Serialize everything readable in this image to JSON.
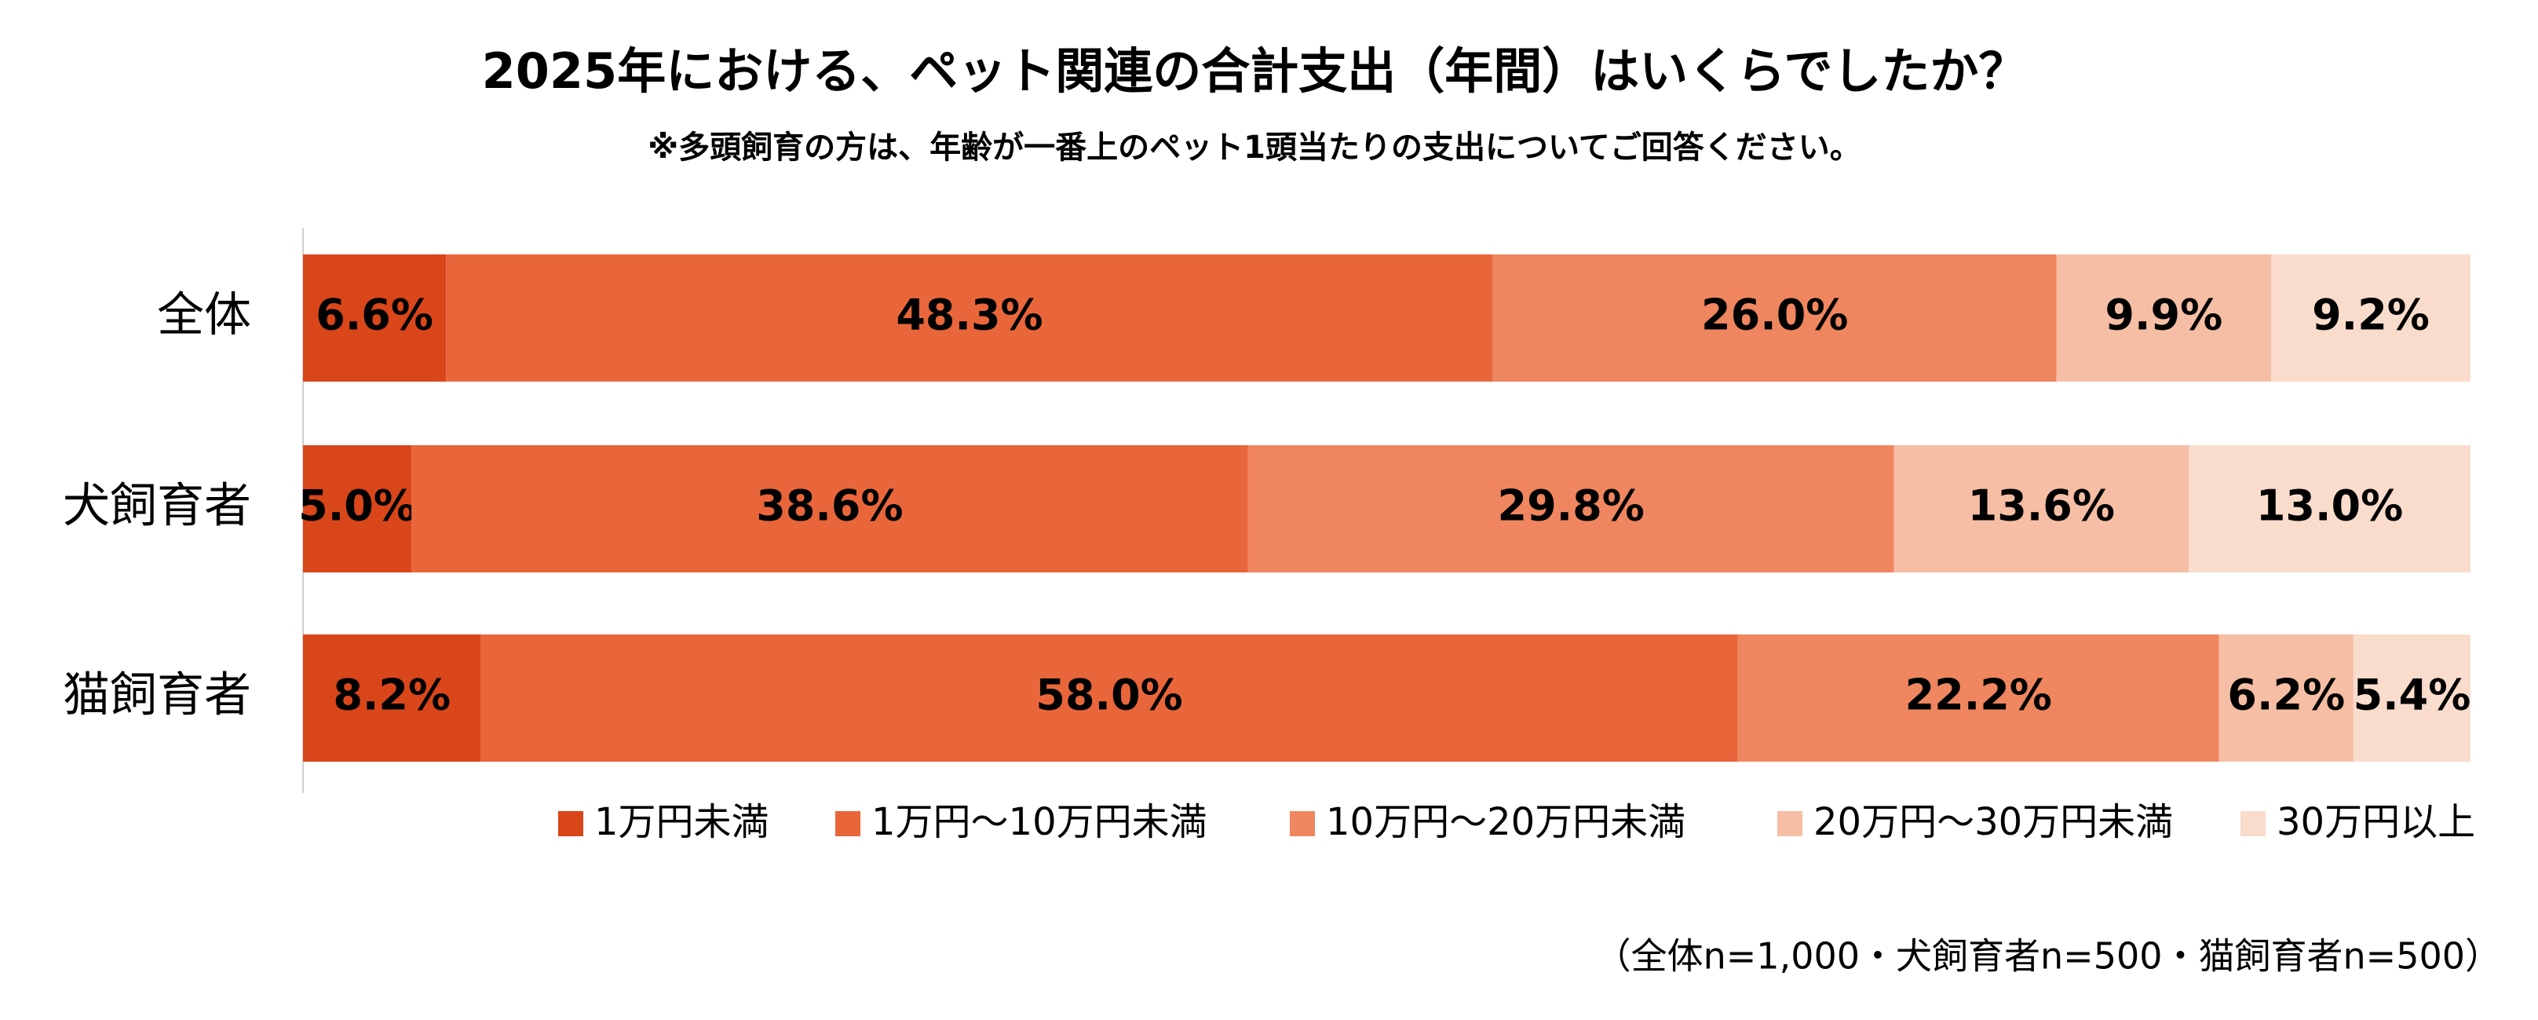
{
  "chart_data": {
    "type": "stacked-bar-horizontal",
    "title": "2025年における、ペット関連の合計支出（年間）はいくらでしたか？",
    "subtitle": "※多頭飼育の方は、年齢が一番上のペット1頭当たりの支出についてご回答ください。",
    "categories": [
      "全体",
      "犬飼育者",
      "猫飼育者"
    ],
    "series": [
      {
        "name": "1万円未満",
        "color": "#d9461a",
        "label_color": "#ffffff",
        "values": [
          6.6,
          5.0,
          8.2
        ],
        "value_labels": [
          "6.6%",
          "5.0%",
          "8.2%"
        ]
      },
      {
        "name": "1万円～10万円未満",
        "color": "#e9663a",
        "label_color": "#ffffff",
        "values": [
          48.3,
          38.6,
          58.0
        ],
        "value_labels": [
          "48.3%",
          "38.6%",
          "58.0%"
        ]
      },
      {
        "name": "10万円～20万円未満",
        "color": "#ef865f",
        "label_color": "#404040",
        "values": [
          26.0,
          29.8,
          22.2
        ],
        "value_labels": [
          "26.0%",
          "29.8%",
          "22.2%"
        ]
      },
      {
        "name": "20万円～30万円未満",
        "color": "#f6bea4",
        "label_color": "#404040",
        "values": [
          9.9,
          13.6,
          6.2
        ],
        "value_labels": [
          "9.9%",
          "13.6%",
          "6.2%"
        ]
      },
      {
        "name": "30万円以上",
        "color": "#fadccd",
        "label_color": "#404040",
        "values": [
          9.2,
          13.0,
          5.4
        ],
        "value_labels": [
          "9.2%",
          "13.0%",
          "5.4%"
        ]
      }
    ],
    "legend": "bottom",
    "note": "（全体n=1,000・犬飼育者n=500・猫飼育者n=500）"
  }
}
